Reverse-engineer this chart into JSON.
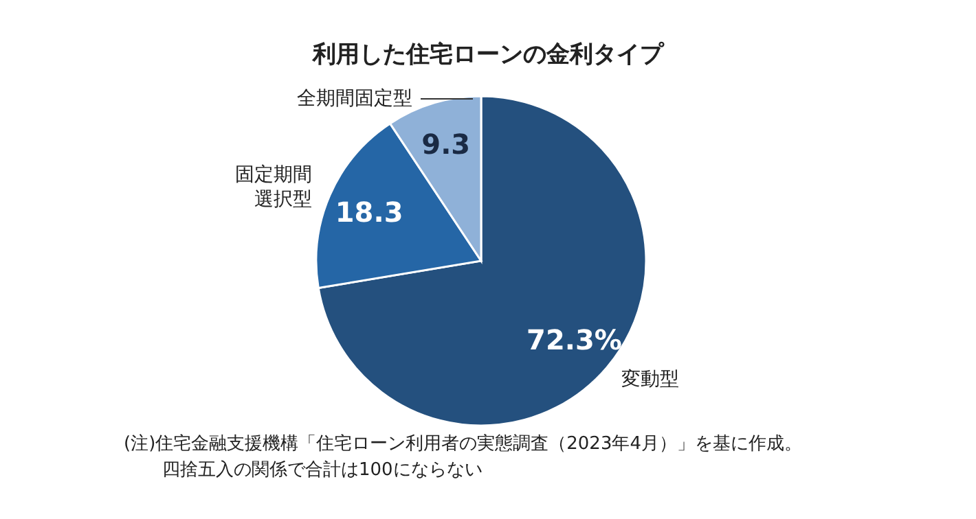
{
  "chart_data": {
    "type": "pie",
    "title": "利用した住宅ローンの金利タイプ",
    "categories": [
      "変動型",
      "固定期間選択型",
      "全期間固定型"
    ],
    "values": [
      72.3,
      18.3,
      9.3
    ],
    "value_labels": [
      "72.3%",
      "18.3",
      "9.3"
    ],
    "colors": [
      "#24507e",
      "#2566a6",
      "#8fb1d8"
    ],
    "annotations": [
      "(注)住宅金融支援機構「住宅ローン利用者の実態調査（2023年4月）」を基に作成。",
      "四捨五入の関係で合計は100にならない"
    ]
  }
}
